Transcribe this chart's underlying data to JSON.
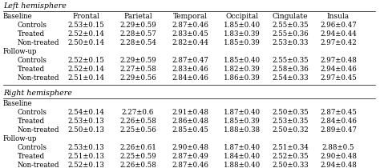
{
  "title_left": "Left hemisphere",
  "title_right": "Right hemisphere",
  "columns": [
    "Frontal",
    "Parietal",
    "Temporal",
    "Occipital",
    "Cingulate",
    "Insula"
  ],
  "left_hemisphere": {
    "Baseline": {
      "Controls": [
        "2.53±0.15",
        "2.29±0.59",
        "2.87±0.46",
        "1.85±0.40",
        "2.55±0.35",
        "2.96±0.47"
      ],
      "Treated": [
        "2.52±0.14",
        "2.28±0.57",
        "2.83±0.45",
        "1.83±0.39",
        "2.55±0.36",
        "2.94±0.44"
      ],
      "Non-treated": [
        "2.50±0.14",
        "2.28±0.54",
        "2.82±0.44",
        "1.85±0.39",
        "2.53±0.33",
        "2.97±0.42"
      ]
    },
    "Follow-up": {
      "Controls": [
        "2.52±0.15",
        "2.29±0.59",
        "2.87±0.47",
        "1.85±0.40",
        "2.55±0.35",
        "2.97±0.48"
      ],
      "Treated": [
        "2.52±0.14",
        "2.27±0.58",
        "2.83±0.46",
        "1.82±0.39",
        "2.58±0.36",
        "2.94±0.46"
      ],
      "Non-treated": [
        "2.51±0.14",
        "2.29±0.56",
        "2.84±0.46",
        "1.86±0.39",
        "2.54±0.33",
        "2.97±0.45"
      ]
    }
  },
  "right_hemisphere": {
    "Baseline": {
      "Controls": [
        "2.54±0.14",
        "2.27±0.6",
        "2.91±0.48",
        "1.87±0.40",
        "2.50±0.35",
        "2.87±0.45"
      ],
      "Treated": [
        "2.53±0.13",
        "2.26±0.58",
        "2.86±0.48",
        "1.85±0.39",
        "2.53±0.35",
        "2.84±0.46"
      ],
      "Non-treated": [
        "2.50±0.13",
        "2.25±0.56",
        "2.85±0.45",
        "1.88±0.38",
        "2.50±0.32",
        "2.89±0.47"
      ]
    },
    "Follow-up": {
      "Controls": [
        "2.53±0.13",
        "2.26±0.61",
        "2.90±0.48",
        "1.87±0.40",
        "2.51±0.34",
        "2.88±0.5"
      ],
      "Treated": [
        "2.51±0.13",
        "2.25±0.59",
        "2.87±0.49",
        "1.84±0.40",
        "2.52±0.35",
        "2.90±0.48"
      ],
      "Non-treated": [
        "2.52±0.13",
        "2.26±0.58",
        "2.87±0.46",
        "1.88±0.40",
        "2.50±0.33",
        "2.94±0.48"
      ]
    }
  },
  "bg_color": "#ffffff",
  "fontsize": 6.2,
  "title_fontsize": 6.8,
  "header_fontsize": 6.5
}
